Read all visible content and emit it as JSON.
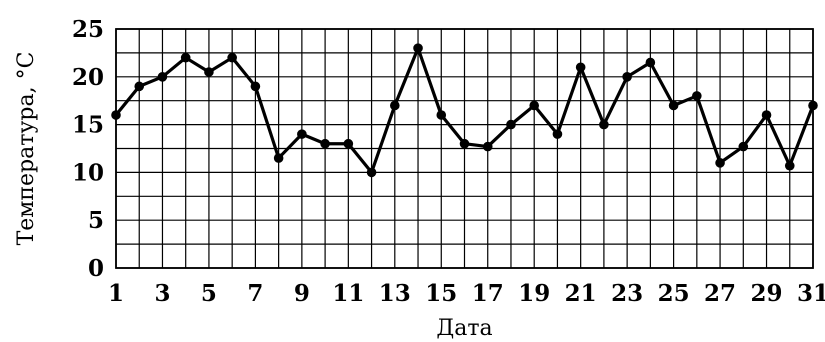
{
  "chart_data": {
    "type": "line",
    "title": "",
    "xlabel": "Дата",
    "ylabel": "Температура, °С",
    "xlim": [
      1,
      31
    ],
    "ylim": [
      0,
      25
    ],
    "grid": true,
    "x_tick_labels": [
      1,
      3,
      5,
      7,
      9,
      11,
      13,
      15,
      17,
      19,
      21,
      23,
      25,
      27,
      29,
      31
    ],
    "y_tick_labels": [
      0,
      5,
      10,
      15,
      20,
      25
    ],
    "x": [
      1,
      2,
      3,
      4,
      5,
      6,
      7,
      8,
      9,
      10,
      11,
      12,
      13,
      14,
      15,
      16,
      17,
      18,
      19,
      20,
      21,
      22,
      23,
      24,
      25,
      26,
      27,
      28,
      29,
      30,
      31
    ],
    "series": [
      {
        "values": [
          16,
          19,
          20,
          22,
          20.5,
          22,
          19,
          11.5,
          14,
          13,
          13,
          10,
          17,
          23,
          16,
          13,
          12.7,
          15,
          17,
          14,
          21,
          15,
          20,
          21.5,
          17,
          18,
          11,
          12.7,
          16,
          10.7,
          17
        ]
      }
    ]
  }
}
